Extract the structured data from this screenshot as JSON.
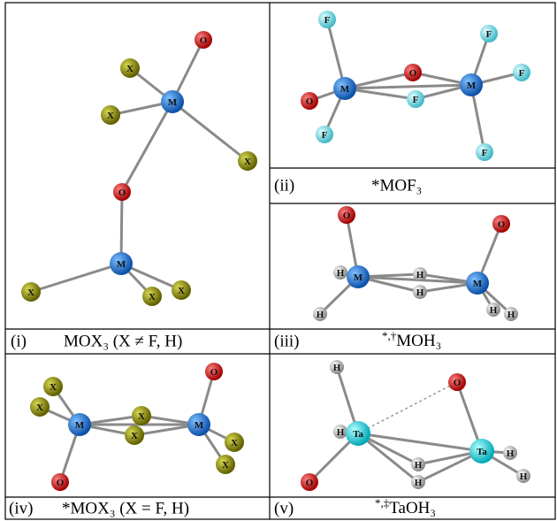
{
  "panels": [
    {
      "label": "(i)",
      "formula": "MOX₃ (X ≠ F, H)",
      "atoms": [
        "O",
        "X",
        "M",
        "X",
        "X",
        "O",
        "M",
        "X",
        "X",
        "X"
      ]
    },
    {
      "label": "(ii)",
      "formula": "*MOF₃",
      "atoms": [
        "F",
        "F",
        "O",
        "M",
        "M",
        "F",
        "O",
        "F",
        "F",
        "F"
      ]
    },
    {
      "label": "(iii)",
      "prefix": "*,†",
      "formula": "MOH₃",
      "atoms": [
        "O",
        "O",
        "H",
        "M",
        "H",
        "H",
        "M",
        "H",
        "H",
        "H"
      ]
    },
    {
      "label": "(iv)",
      "formula": "*MOX₃ (X = F, H)",
      "atoms": [
        "O",
        "X",
        "X",
        "X",
        "M",
        "M",
        "X",
        "X",
        "X",
        "O"
      ]
    },
    {
      "label": "(v)",
      "prefix": "*,‡",
      "formula": "TaOH₃",
      "atoms": [
        "H",
        "O",
        "H",
        "Ta",
        "H",
        "H",
        "Ta",
        "H",
        "H",
        "O"
      ]
    }
  ]
}
